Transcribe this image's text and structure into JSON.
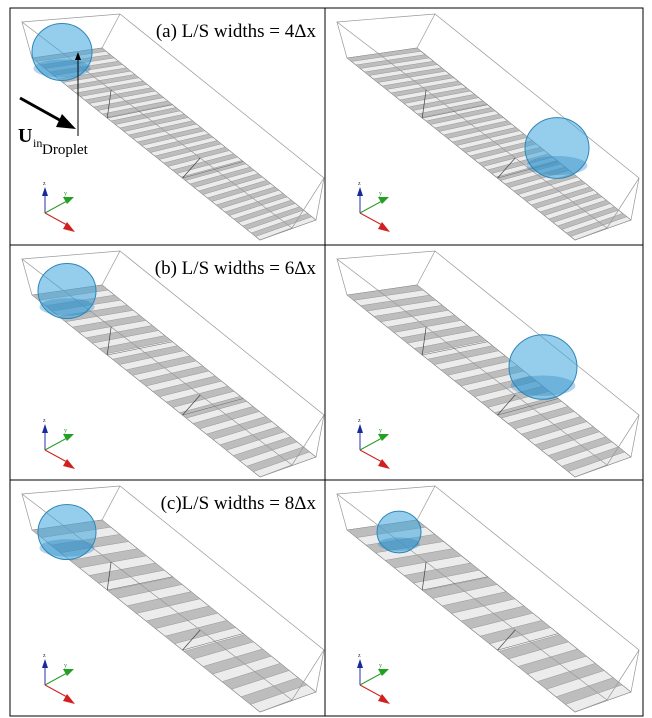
{
  "panels": [
    {
      "label": "(a) L/S widths = 4Δx"
    },
    {
      "label": null
    },
    {
      "label": "(b) L/S widths = 6Δx"
    },
    {
      "label": null
    },
    {
      "label": "(c)L/S widths = 8Δx"
    },
    {
      "label": null
    }
  ],
  "annotations": {
    "velocity": "U",
    "velocity_subscript": "in",
    "droplet": "Droplet"
  },
  "axis_labels": {
    "z": "z",
    "y": "y"
  }
}
